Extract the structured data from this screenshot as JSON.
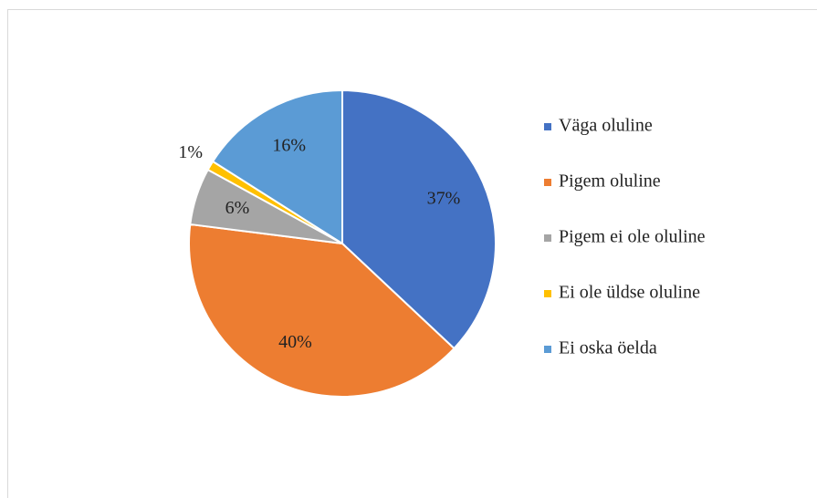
{
  "chart_data": {
    "type": "pie",
    "categories": [
      "Väga oluline",
      "Pigem oluline",
      "Pigem ei ole oluline",
      "Ei ole üldse oluline",
      "Ei oska öelda"
    ],
    "values": [
      37,
      40,
      6,
      1,
      16
    ],
    "value_labels": [
      "37%",
      "40%",
      "6%",
      "1%",
      "16%"
    ],
    "colors": [
      "#4472c4",
      "#ed7d31",
      "#a5a5a5",
      "#ffc000",
      "#5b9bd5"
    ],
    "legend": "right"
  }
}
